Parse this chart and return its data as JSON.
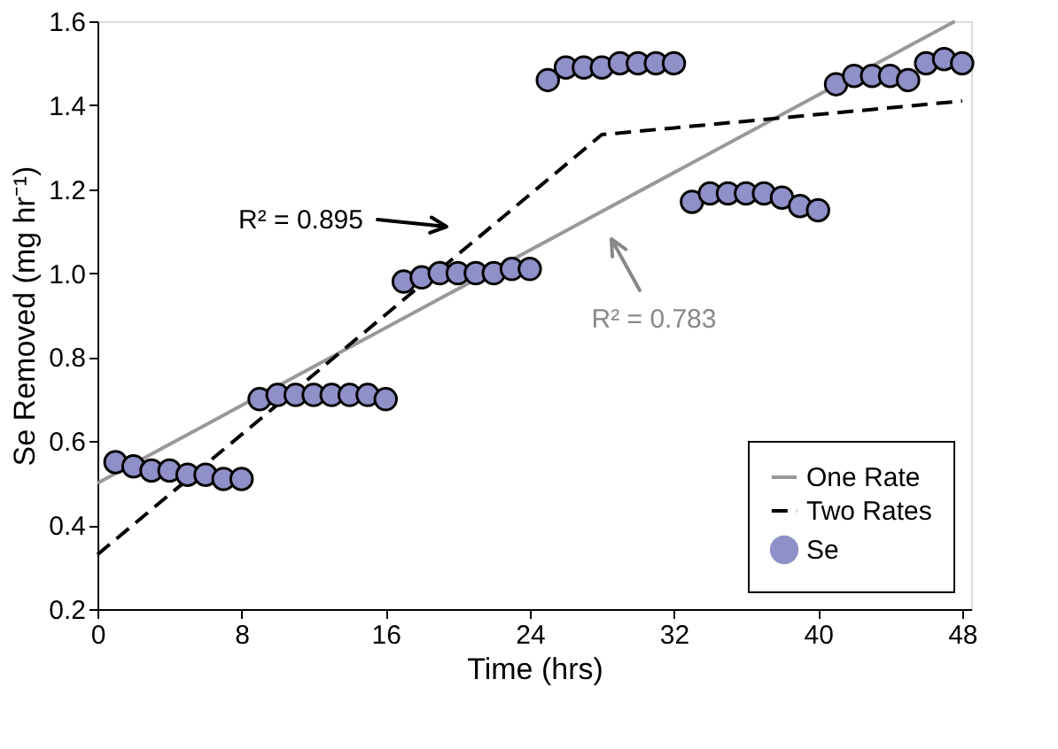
{
  "chart_data": {
    "type": "scatter",
    "xlabel": "Time (hrs)",
    "ylabel": "Se Removed (mg hr⁻¹)",
    "xlim": [
      0,
      48.5
    ],
    "ylim": [
      0.2,
      1.6
    ],
    "xticks": [
      0,
      8,
      16,
      24,
      32,
      40,
      48
    ],
    "yticks": [
      0.2,
      0.4,
      0.6,
      0.8,
      {
        "value": 1.0,
        "label": "1.0"
      },
      1.2,
      1.4,
      1.6
    ],
    "grid": false,
    "legend": "bottom right",
    "series": [
      {
        "name": "One Rate",
        "type": "line",
        "color": "#999999",
        "line_style": "solid",
        "x": [
          0,
          47.6
        ],
        "values": [
          0.5,
          1.6
        ]
      },
      {
        "name": "Two Rates",
        "type": "line",
        "color": "#000000",
        "line_style": "dashed",
        "x": [
          0,
          28,
          48
        ],
        "values": [
          0.33,
          1.33,
          1.41
        ]
      },
      {
        "name": "Se",
        "marker": "circle",
        "color": "#9090c8",
        "x": [
          1,
          2,
          3,
          4,
          5,
          6,
          7,
          8,
          9,
          10,
          11,
          12,
          13,
          14,
          15,
          16,
          17,
          18,
          19,
          20,
          21,
          22,
          23,
          24,
          25,
          26,
          27,
          28,
          29,
          30,
          31,
          32,
          33,
          34,
          35,
          36,
          37,
          38,
          39,
          40,
          41,
          42,
          43,
          44,
          45,
          46,
          47,
          48
        ],
        "values": [
          0.55,
          0.54,
          0.53,
          0.53,
          0.52,
          0.52,
          0.51,
          0.51,
          0.7,
          0.71,
          0.71,
          0.71,
          0.71,
          0.71,
          0.71,
          0.7,
          0.98,
          0.99,
          1.0,
          1.0,
          1.0,
          1.0,
          1.01,
          1.01,
          1.46,
          1.49,
          1.49,
          1.49,
          1.5,
          1.5,
          1.5,
          1.5,
          1.17,
          1.19,
          1.19,
          1.19,
          1.19,
          1.18,
          1.16,
          1.15,
          1.45,
          1.47,
          1.47,
          1.47,
          1.46,
          1.5,
          1.51,
          1.5
        ]
      }
    ],
    "annotations": [
      "R² = 0.895",
      "R² = 0.783"
    ]
  }
}
